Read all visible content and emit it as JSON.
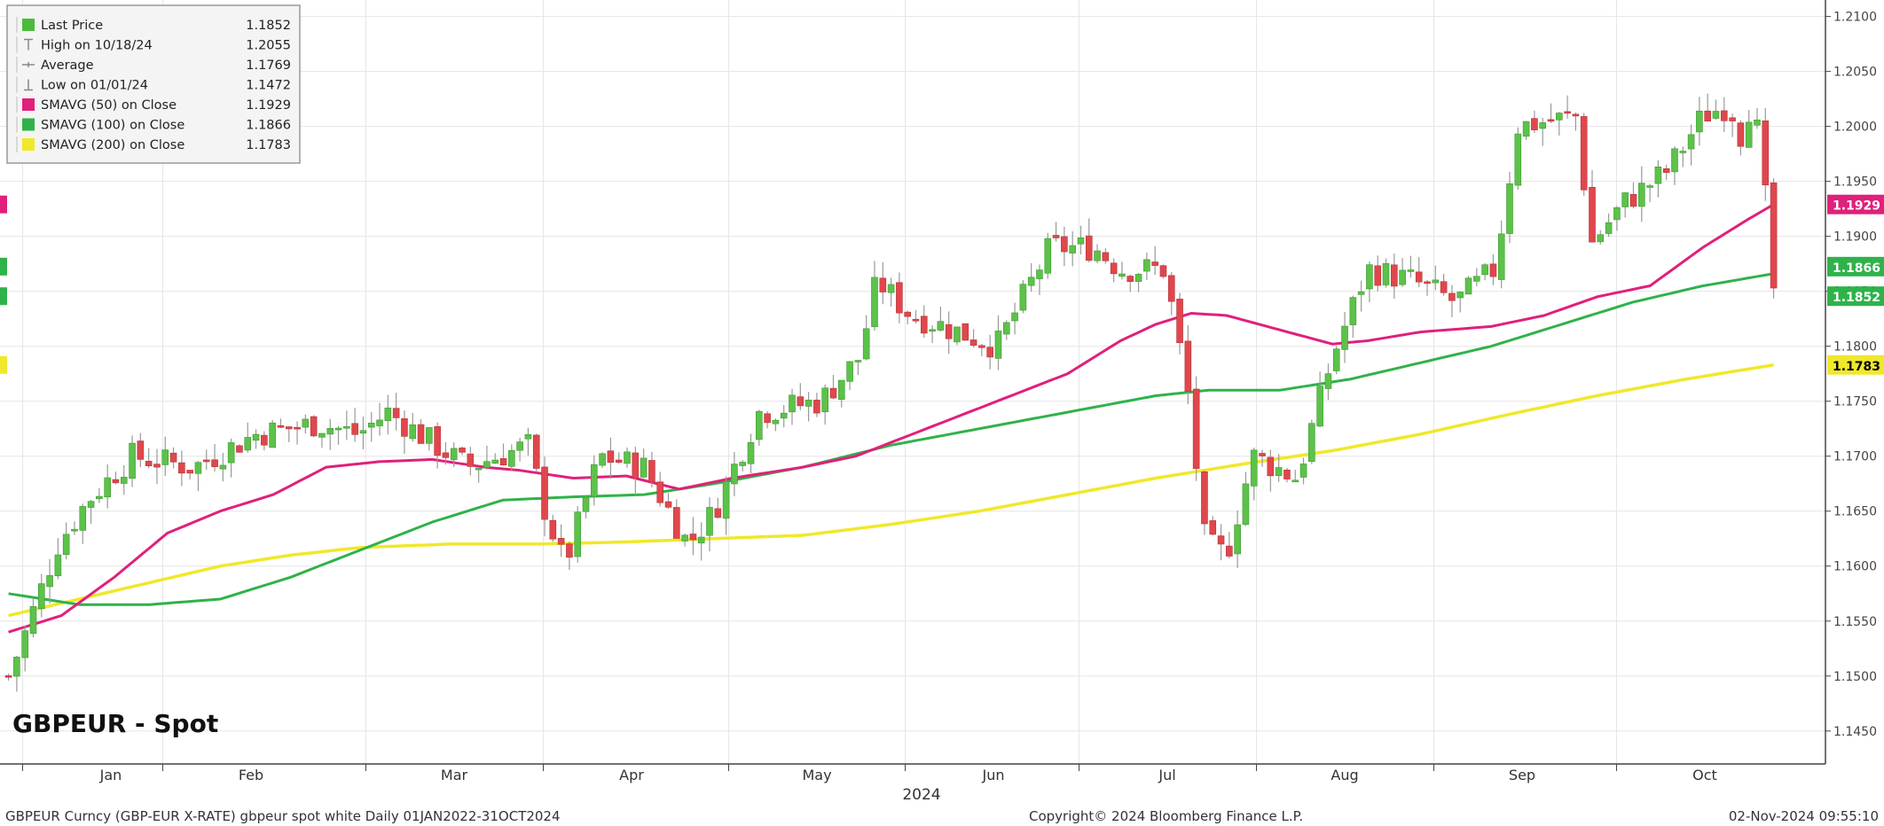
{
  "chart_data": {
    "type": "candlestick",
    "title": "GBPEUR - Spot",
    "footer": {
      "left": "GBPEUR Curncy (GBP-EUR X-RATE) gbpeur spot white  Daily 01JAN2022-31OCT2024",
      "center": "Copyright© 2024 Bloomberg Finance L.P.",
      "right": "02-Nov-2024 09:55:10"
    },
    "year_label": "2024",
    "x_months": [
      "Jan",
      "Feb",
      "Mar",
      "Apr",
      "May",
      "Jun",
      "Jul",
      "Aug",
      "Sep",
      "Oct"
    ],
    "y_ticks": [
      "1.2100",
      "1.2050",
      "1.2000",
      "1.1950",
      "1.1900",
      "1.1850",
      "1.1800",
      "1.1750",
      "1.1700",
      "1.1650",
      "1.1600",
      "1.1550",
      "1.1500",
      "1.1450"
    ],
    "ylim": [
      1.142,
      1.2115
    ],
    "legend": [
      {
        "label": "Last Price",
        "value": "1.1852",
        "color": "#4dbb3a",
        "marker": "box"
      },
      {
        "label": "High on 10/18/24",
        "value": "1.2055",
        "color": "#888888",
        "marker": "high"
      },
      {
        "label": "Average",
        "value": "1.1769",
        "color": "#888888",
        "marker": "avg"
      },
      {
        "label": "Low on 01/01/24",
        "value": "1.1472",
        "color": "#888888",
        "marker": "low"
      },
      {
        "label": "SMAVG (50)  on Close",
        "value": "1.1929",
        "color": "#e0207a",
        "marker": "box"
      },
      {
        "label": "SMAVG (100)  on Close",
        "value": "1.1866",
        "color": "#2fb24a",
        "marker": "box"
      },
      {
        "label": "SMAVG (200)  on Close",
        "value": "1.1783",
        "color": "#f0e82a",
        "marker": "box"
      }
    ],
    "right_tags": [
      {
        "value": "1.1929",
        "color": "#e0207a",
        "text_color": "#ffffff"
      },
      {
        "value": "1.1866",
        "color": "#2fb24a",
        "text_color": "#ffffff"
      },
      {
        "value": "1.1852",
        "color": "#2fb24a",
        "text_color": "#ffffff"
      },
      {
        "value": "1.1783",
        "color": "#f0e82a",
        "text_color": "#000000"
      }
    ],
    "left_tags": [
      {
        "value": "1.1929",
        "color": "#e0207a"
      },
      {
        "value": "1.1866",
        "color": "#2fb24a"
      },
      {
        "value": "1.1852",
        "color": "#2fb24a"
      },
      {
        "value": "1.1783",
        "color": "#f0e82a"
      }
    ],
    "colors": {
      "up": "#5cc24a",
      "down": "#e0474c",
      "wick": "#999999",
      "grid": "#e6e6e6",
      "axis": "#444444"
    },
    "close_keypoints": [
      {
        "t": 0.0,
        "v": 1.15
      },
      {
        "t": 0.05,
        "v": 1.152
      },
      {
        "t": 0.28,
        "v": 1.162
      },
      {
        "t": 0.45,
        "v": 1.166
      },
      {
        "t": 0.7,
        "v": 1.17
      },
      {
        "t": 1.05,
        "v": 1.169
      },
      {
        "t": 1.4,
        "v": 1.172
      },
      {
        "t": 1.75,
        "v": 1.173
      },
      {
        "t": 1.98,
        "v": 1.172
      },
      {
        "t": 2.15,
        "v": 1.174
      },
      {
        "t": 2.6,
        "v": 1.169
      },
      {
        "t": 2.95,
        "v": 1.171
      },
      {
        "t": 3.02,
        "v": 1.166
      },
      {
        "t": 3.15,
        "v": 1.16
      },
      {
        "t": 3.35,
        "v": 1.17
      },
      {
        "t": 3.6,
        "v": 1.169
      },
      {
        "t": 3.85,
        "v": 1.162
      },
      {
        "t": 4.0,
        "v": 1.165
      },
      {
        "t": 4.25,
        "v": 1.174
      },
      {
        "t": 4.6,
        "v": 1.175
      },
      {
        "t": 4.82,
        "v": 1.179
      },
      {
        "t": 4.92,
        "v": 1.186
      },
      {
        "t": 5.1,
        "v": 1.183
      },
      {
        "t": 5.6,
        "v": 1.18
      },
      {
        "t": 5.9,
        "v": 1.189
      },
      {
        "t": 6.15,
        "v": 1.189
      },
      {
        "t": 6.3,
        "v": 1.187
      },
      {
        "t": 6.55,
        "v": 1.187
      },
      {
        "t": 6.68,
        "v": 1.176
      },
      {
        "t": 6.78,
        "v": 1.162
      },
      {
        "t": 6.9,
        "v": 1.161
      },
      {
        "t": 7.05,
        "v": 1.17
      },
      {
        "t": 7.3,
        "v": 1.168
      },
      {
        "t": 7.5,
        "v": 1.179
      },
      {
        "t": 7.7,
        "v": 1.187
      },
      {
        "t": 7.95,
        "v": 1.186
      },
      {
        "t": 8.2,
        "v": 1.184
      },
      {
        "t": 8.42,
        "v": 1.187
      },
      {
        "t": 8.55,
        "v": 1.2
      },
      {
        "t": 8.9,
        "v": 1.201
      },
      {
        "t": 8.95,
        "v": 1.189
      },
      {
        "t": 9.15,
        "v": 1.193
      },
      {
        "t": 9.4,
        "v": 1.196
      },
      {
        "t": 9.6,
        "v": 1.201
      },
      {
        "t": 9.75,
        "v": 1.202
      },
      {
        "t": 9.82,
        "v": 1.199
      },
      {
        "t": 9.88,
        "v": 1.203
      },
      {
        "t": 9.95,
        "v": 1.194
      },
      {
        "t": 10.0,
        "v": 1.1852
      }
    ],
    "sma50": [
      {
        "t": 0.0,
        "v": 1.154
      },
      {
        "t": 0.3,
        "v": 1.1555
      },
      {
        "t": 0.6,
        "v": 1.159
      },
      {
        "t": 0.9,
        "v": 1.163
      },
      {
        "t": 1.2,
        "v": 1.165
      },
      {
        "t": 1.5,
        "v": 1.1665
      },
      {
        "t": 1.8,
        "v": 1.169
      },
      {
        "t": 2.1,
        "v": 1.1695
      },
      {
        "t": 2.4,
        "v": 1.1697
      },
      {
        "t": 2.7,
        "v": 1.169
      },
      {
        "t": 2.9,
        "v": 1.1687
      },
      {
        "t": 3.2,
        "v": 1.168
      },
      {
        "t": 3.5,
        "v": 1.1682
      },
      {
        "t": 3.8,
        "v": 1.167
      },
      {
        "t": 4.1,
        "v": 1.168
      },
      {
        "t": 4.5,
        "v": 1.169
      },
      {
        "t": 4.8,
        "v": 1.17
      },
      {
        "t": 5.2,
        "v": 1.1725
      },
      {
        "t": 5.6,
        "v": 1.175
      },
      {
        "t": 6.0,
        "v": 1.1775
      },
      {
        "t": 6.3,
        "v": 1.1805
      },
      {
        "t": 6.5,
        "v": 1.182
      },
      {
        "t": 6.7,
        "v": 1.183
      },
      {
        "t": 6.9,
        "v": 1.1828
      },
      {
        "t": 7.2,
        "v": 1.1815
      },
      {
        "t": 7.5,
        "v": 1.1802
      },
      {
        "t": 7.7,
        "v": 1.1805
      },
      {
        "t": 8.0,
        "v": 1.1813
      },
      {
        "t": 8.4,
        "v": 1.1818
      },
      {
        "t": 8.7,
        "v": 1.1828
      },
      {
        "t": 9.0,
        "v": 1.1845
      },
      {
        "t": 9.3,
        "v": 1.1855
      },
      {
        "t": 9.6,
        "v": 1.189
      },
      {
        "t": 9.85,
        "v": 1.1915
      },
      {
        "t": 10.0,
        "v": 1.1929
      }
    ],
    "sma100": [
      {
        "t": 0.0,
        "v": 1.1575
      },
      {
        "t": 0.4,
        "v": 1.1565
      },
      {
        "t": 0.8,
        "v": 1.1565
      },
      {
        "t": 1.2,
        "v": 1.157
      },
      {
        "t": 1.6,
        "v": 1.159
      },
      {
        "t": 2.0,
        "v": 1.1615
      },
      {
        "t": 2.4,
        "v": 1.164
      },
      {
        "t": 2.8,
        "v": 1.166
      },
      {
        "t": 3.2,
        "v": 1.1663
      },
      {
        "t": 3.6,
        "v": 1.1665
      },
      {
        "t": 4.0,
        "v": 1.1675
      },
      {
        "t": 4.5,
        "v": 1.169
      },
      {
        "t": 5.0,
        "v": 1.171
      },
      {
        "t": 5.5,
        "v": 1.1725
      },
      {
        "t": 6.0,
        "v": 1.174
      },
      {
        "t": 6.5,
        "v": 1.1755
      },
      {
        "t": 6.8,
        "v": 1.176
      },
      {
        "t": 7.2,
        "v": 1.176
      },
      {
        "t": 7.6,
        "v": 1.177
      },
      {
        "t": 8.0,
        "v": 1.1785
      },
      {
        "t": 8.4,
        "v": 1.18
      },
      {
        "t": 8.8,
        "v": 1.182
      },
      {
        "t": 9.2,
        "v": 1.184
      },
      {
        "t": 9.6,
        "v": 1.1855
      },
      {
        "t": 10.0,
        "v": 1.1866
      }
    ],
    "sma200": [
      {
        "t": 0.0,
        "v": 1.1555
      },
      {
        "t": 0.4,
        "v": 1.157
      },
      {
        "t": 0.8,
        "v": 1.1585
      },
      {
        "t": 1.2,
        "v": 1.16
      },
      {
        "t": 1.6,
        "v": 1.161
      },
      {
        "t": 2.0,
        "v": 1.1617
      },
      {
        "t": 2.5,
        "v": 1.162
      },
      {
        "t": 3.0,
        "v": 1.162
      },
      {
        "t": 3.5,
        "v": 1.1622
      },
      {
        "t": 4.0,
        "v": 1.1625
      },
      {
        "t": 4.5,
        "v": 1.1628
      },
      {
        "t": 5.0,
        "v": 1.1638
      },
      {
        "t": 5.5,
        "v": 1.165
      },
      {
        "t": 6.0,
        "v": 1.1665
      },
      {
        "t": 6.5,
        "v": 1.168
      },
      {
        "t": 7.0,
        "v": 1.1693
      },
      {
        "t": 7.5,
        "v": 1.1705
      },
      {
        "t": 8.0,
        "v": 1.172
      },
      {
        "t": 8.5,
        "v": 1.1738
      },
      {
        "t": 9.0,
        "v": 1.1755
      },
      {
        "t": 9.5,
        "v": 1.177
      },
      {
        "t": 10.0,
        "v": 1.1783
      }
    ]
  }
}
